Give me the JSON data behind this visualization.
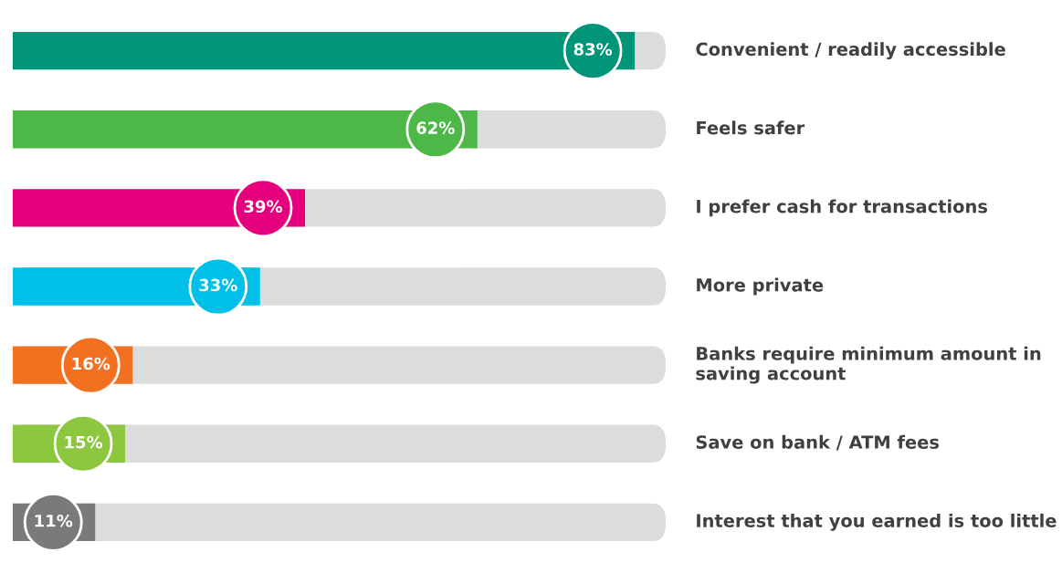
{
  "chart_data": {
    "type": "bar",
    "orientation": "horizontal",
    "categories": [
      "Convenient / readily accessible",
      "Feels safer",
      "I prefer cash for transactions",
      "More private",
      "Banks require minimum amount in saving account",
      "Save on bank / ATM fees",
      "Interest that you earned is too little"
    ],
    "series": [
      {
        "colors": [
          "#009479",
          "#4db848",
          "#e6007e",
          "#00bfe8",
          "#f37021",
          "#8dc63f",
          "#7a7a7a"
        ],
        "values": [
          83,
          62,
          39,
          33,
          16,
          15,
          11
        ],
        "value_labels": [
          "83%",
          "62%",
          "39%",
          "33%",
          "16%",
          "15%",
          "11%"
        ]
      }
    ],
    "tick_labels": "y"
  }
}
